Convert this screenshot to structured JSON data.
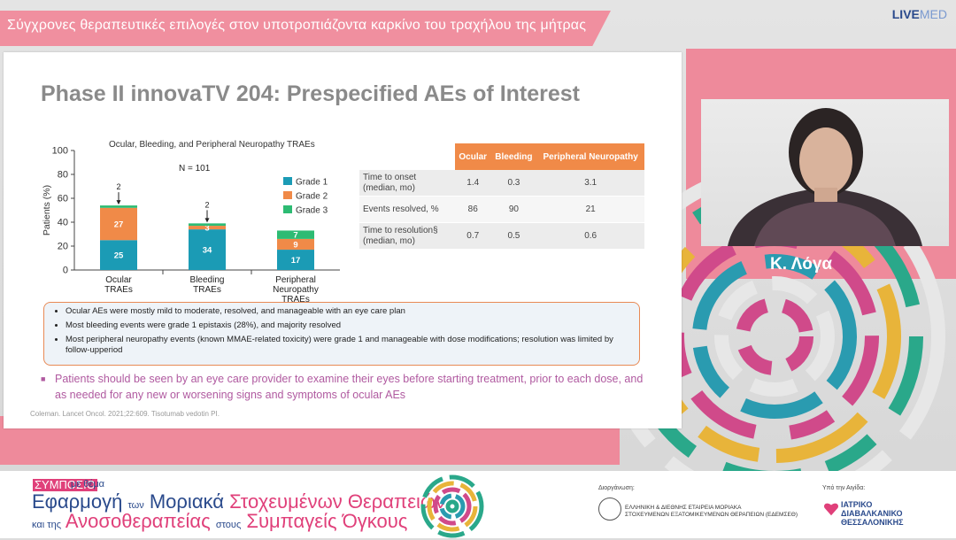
{
  "header": {
    "title": "Σύγχρονες θεραπευτικές επιλογές στον υποτροπιάζοντα καρκίνο του τραχήλου της μήτρας",
    "logo_a": "LIVE",
    "logo_b": "MED"
  },
  "slide": {
    "title": "Phase II innovaTV 204: Prespecified AEs of Interest",
    "chart_title": "Ocular, Bleeding, and Peripheral Neuropathy TRAEs",
    "n_label": "N = 101",
    "table": {
      "headers": [
        "",
        "Ocular",
        "Bleeding",
        "Peripheral Neuropathy"
      ],
      "rows": [
        {
          "label": "Time to onset (median, mo)",
          "values": [
            "1.4",
            "0.3",
            "3.1"
          ]
        },
        {
          "label": "Events resolved, %",
          "values": [
            "86",
            "90",
            "21"
          ]
        },
        {
          "label": "Time to resolution§ (median, mo)",
          "values": [
            "0.7",
            "0.5",
            "0.6"
          ]
        }
      ]
    },
    "bullets": [
      "Ocular AEs were mostly mild to moderate, resolved, and manageable with an eye care plan",
      "Most bleeding events were grade 1 epistaxis (28%), and majority resolved",
      "Most peripheral neuropathy events (known MMAE-related toxicity) were grade 1 and manageable with dose modifications; resolution was limited by follow-upperiod"
    ],
    "patients_note": "Patients should be seen by an eye care provider to examine their eyes before starting treatment, prior to each dose, and as needed for any new or worsening signs and symptoms of ocular AEs",
    "reference": "Coleman. Lancet Oncol. 2021;22:609. Tisotumab vedotin PI."
  },
  "chart_data": {
    "type": "bar",
    "stacked": true,
    "title": "Ocular, Bleeding, and Peripheral Neuropathy TRAEs",
    "ylabel": "Patients (%)",
    "ylim": [
      0,
      100
    ],
    "yticks": [
      0,
      20,
      40,
      60,
      80,
      100
    ],
    "categories": [
      "Ocular TRAEs",
      "Bleeding TRAEs",
      "Peripheral Neuropathy TRAEs"
    ],
    "series": [
      {
        "name": "Grade 1",
        "color": "#1b9bb5",
        "values": [
          25,
          34,
          17
        ],
        "labels": [
          "25",
          "34",
          "17"
        ]
      },
      {
        "name": "Grade 2",
        "color": "#f08a48",
        "values": [
          27,
          3,
          9
        ],
        "labels": [
          "27",
          "3",
          "9"
        ]
      },
      {
        "name": "Grade 3",
        "color": "#2dbb73",
        "values": [
          2,
          2,
          7
        ],
        "labels": [
          "",
          "",
          "7"
        ]
      }
    ],
    "annotations": [
      {
        "category": "Ocular TRAEs",
        "text": "2"
      },
      {
        "category": "Bleeding TRAEs",
        "text": "2"
      }
    ],
    "legend": "top-right"
  },
  "speaker": {
    "name": "Κ. Λόγα"
  },
  "footer": {
    "symposio": "ΣΥΜΠΟΣΙΟ",
    "me_thema": "με θέμα",
    "w1": "Εφαρμογή",
    "w2": "των",
    "w3": "Μοριακά",
    "w4": "Στοχευμένων",
    "w5": "Θεραπειών",
    "w6": "και της",
    "w7": "Ανοσοθεραπείας",
    "w8": "στους",
    "w9": "Συμπαγείς",
    "w10": "Όγκους",
    "org_label": "Διοργάνωση:",
    "org_line1": "ΕΛΛΗΝΙΚΗ & ΔΙΕΘΝΗΣ ΕΤΑΙΡΕΙΑ ΜΟΡΙΑΚΑ",
    "org_line2": "ΣΤΟΧΕΥΜΕΝΩΝ ΕΞΑΤΟΜΙΚΕΥΜΕΝΩΝ ΘΕΡΑΠΕΙΩΝ (ΕΔΕΜΣΕΘ)",
    "aig_label": "Υπό την Αιγίδα:",
    "aig_line1": "ΙΑΤΡΙΚΟ",
    "aig_line2": "ΔΙΑΒΑΛΚΑΝΙΚΟ",
    "aig_line3": "ΘΕΣΣΑΛΟΝΙΚΗΣ"
  }
}
